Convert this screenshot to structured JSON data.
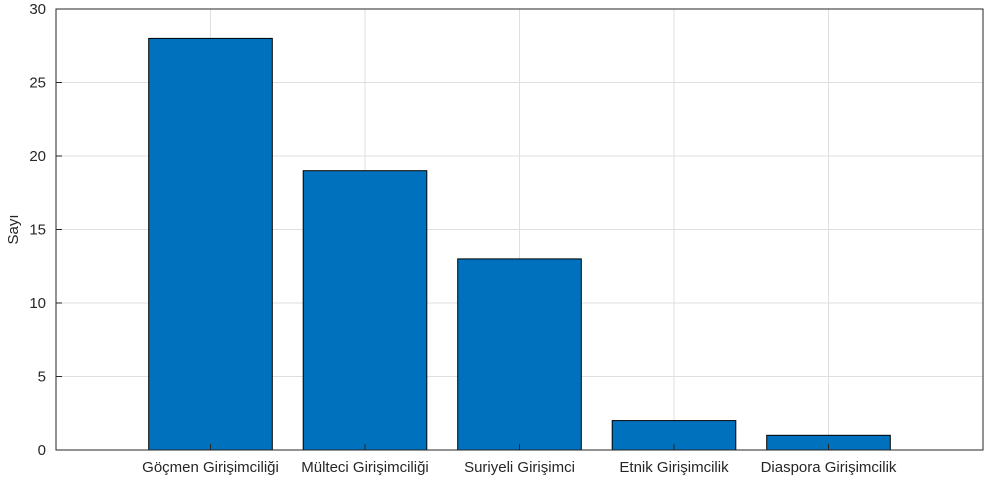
{
  "chart_data": {
    "type": "bar",
    "categories": [
      "Göçmen Girişimciliği",
      "Mülteci Girişimciliği",
      "Suriyeli Girişimci",
      "Etnik Girişimcilik",
      "Diaspora Girişimcilik"
    ],
    "values": [
      28,
      19,
      13,
      2,
      1
    ],
    "title": "",
    "xlabel": "",
    "ylabel": "Sayı",
    "ylim": [
      0,
      30
    ],
    "yticks": [
      0,
      5,
      10,
      15,
      20,
      25,
      30
    ],
    "grid": true,
    "bar_color": "#0072BD",
    "bar_edge_color": "#000000"
  }
}
